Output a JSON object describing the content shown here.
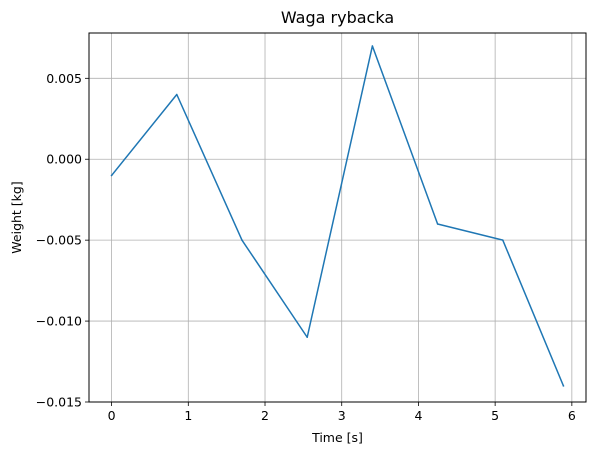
{
  "chart_data": {
    "type": "line",
    "title": "Waga rybacka",
    "xlabel": "Time [s]",
    "ylabel": "Weight [kg]",
    "xlim": [
      -0.2945,
      6.1845
    ],
    "ylim": [
      -0.015,
      0.0078
    ],
    "xticks": [
      0,
      1,
      2,
      3,
      4,
      5,
      6
    ],
    "xtick_labels": [
      "0",
      "1",
      "2",
      "3",
      "4",
      "5",
      "6"
    ],
    "yticks": [
      -0.015,
      -0.01,
      -0.005,
      0.0,
      0.005
    ],
    "ytick_labels": [
      "−0.015",
      "−0.010",
      "−0.005",
      "0.000",
      "0.005"
    ],
    "grid": true,
    "legend": false,
    "series": [
      {
        "color": "#1f77b4",
        "x": [
          0.0,
          0.85,
          1.7,
          2.55,
          3.4,
          4.25,
          5.1,
          5.89
        ],
        "y": [
          -0.001,
          0.004,
          -0.005,
          -0.011,
          0.007,
          -0.004,
          -0.005,
          -0.014
        ]
      }
    ]
  }
}
